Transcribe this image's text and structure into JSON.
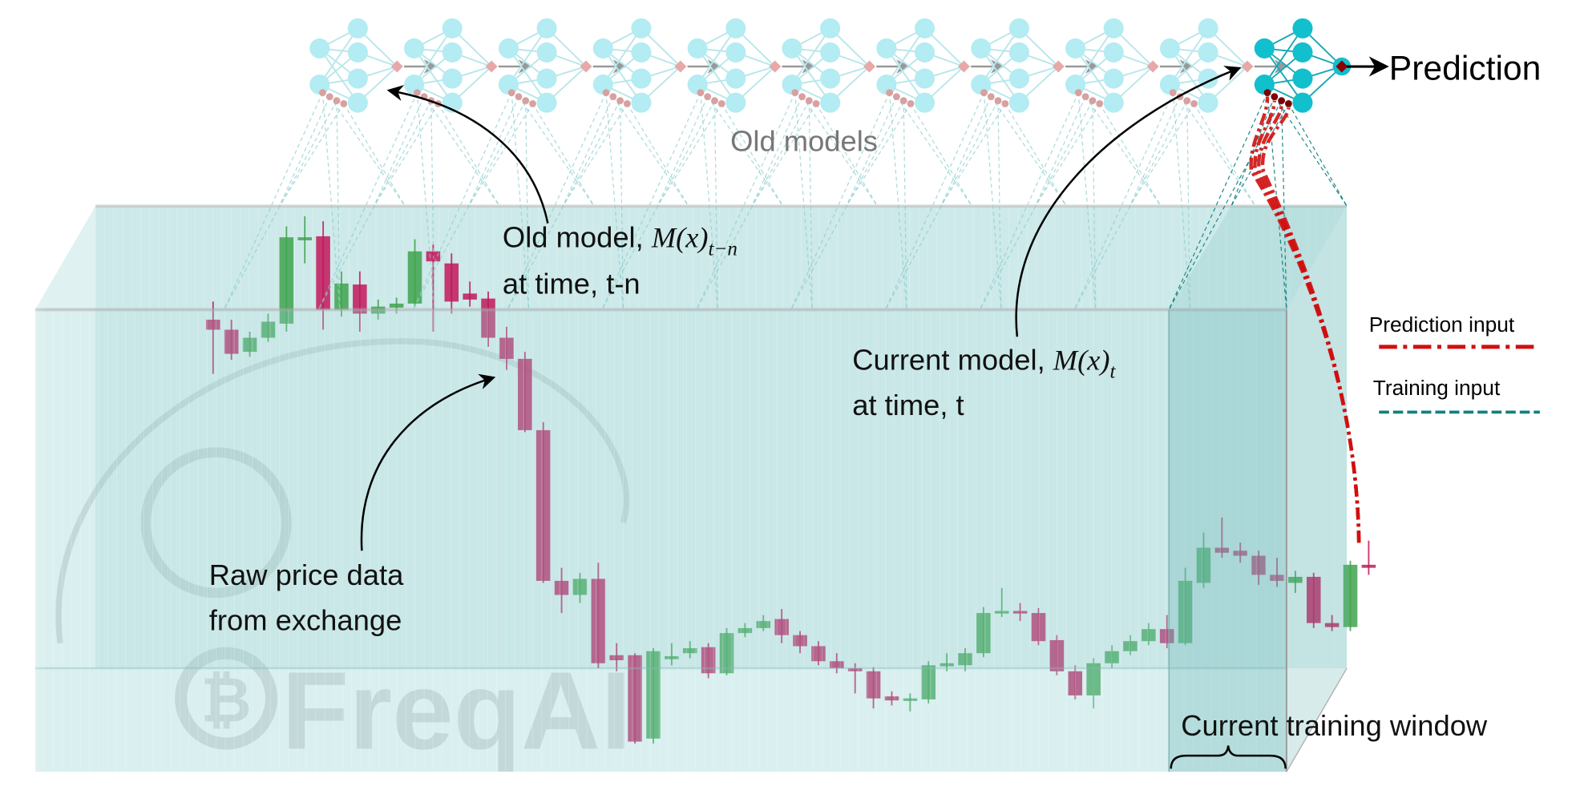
{
  "labels": {
    "prediction": "Prediction",
    "old_models": "Old models",
    "old_model_line1_prefix": "Old model, ",
    "old_model_math": "M(x)",
    "old_model_sub": "t−n",
    "old_model_line2": "at time, t-n",
    "current_model_line1_prefix": "Current model, ",
    "current_model_math": "M(x)",
    "current_model_sub": "t",
    "current_model_line2": "at time, t",
    "raw_line1": "Raw price data",
    "raw_line2": "from exchange",
    "training_window": "Current training window"
  },
  "legend": {
    "prediction_input": "Prediction input",
    "training_input": "Training input"
  },
  "watermark": {
    "text": "FreqAI",
    "symbol": "₿"
  },
  "colors": {
    "bullish": "#3fa34d",
    "bearish": "#c2185b",
    "box": "#8ccccc",
    "net_old": "#b3ecf2",
    "net_current": "#12bfcc",
    "prediction_input": "#d01010",
    "training_input": "#128080",
    "old_models_text": "#777777"
  },
  "models": {
    "old_count": 10,
    "current_count": 1
  }
}
